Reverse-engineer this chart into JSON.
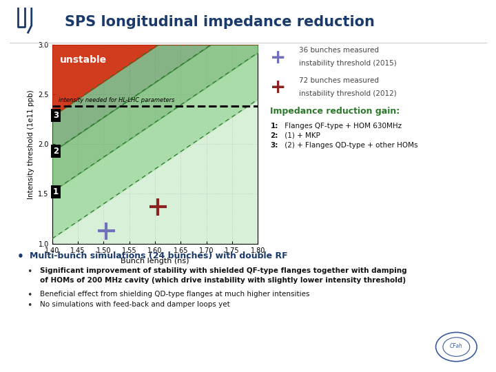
{
  "title": "SPS longitudinal impedance reduction",
  "title_color": "#1a3a6b",
  "bg_color": "#ffffff",
  "xlabel": "Bunch length (ns)",
  "ylabel": "Intensity threshold (1e11 ppb)",
  "xlim": [
    1.4,
    1.8
  ],
  "ylim": [
    1.0,
    3.0
  ],
  "xticks": [
    1.4,
    1.45,
    1.5,
    1.55,
    1.6,
    1.65,
    1.7,
    1.75,
    1.8
  ],
  "yticks": [
    1.0,
    1.5,
    2.0,
    2.5,
    3.0
  ],
  "hl_lhc_intensity": 2.38,
  "unstable_label": "unstable",
  "red_color": "#cc2200",
  "dark_green": "#2d7a2d",
  "mid_green": "#5aaa5a",
  "light_green": "#aadcaa",
  "very_light_green": "#d8f0d8",
  "plot_bg": "#f0faf0",
  "slope": 3.5,
  "c0_y0": 1.05,
  "c1_y0": 1.52,
  "c2_y0": 1.92,
  "c3_y0": 2.28,
  "marker_36_x": 1.505,
  "marker_36_y": 1.13,
  "marker_36_color": "#7070bb",
  "marker_72_x": 1.605,
  "marker_72_y": 1.37,
  "marker_72_color": "#8b2222",
  "label_36_line1": "36 bunches measured",
  "label_36_line2": "instability threshold (2015)",
  "label_72_line1": "72 bunches measured",
  "label_72_line2": "instability threshold (2012)",
  "impedance_title": "Impedance reduction gain:",
  "impedance_1": "1: Flanges QF-type + HOM 630MHz",
  "impedance_2": "2: (1) + MKP",
  "impedance_3": "3: (2) + Flanges QD-type + other HOMs",
  "bullet1": "Multi-bunch simulations (24 bunches) with double RF",
  "bullet2a": "Significant improvement of stability with shielded QF-type flanges together with damping",
  "bullet2b": "of HOMs of 200 MHz cavity (which drive instability with slightly lower intensity threshold)",
  "bullet3": "Beneficial effect from shielding QD-type flanges at much higher intensities",
  "bullet4": "No simulations with feed-back and damper loops yet",
  "green_text": "#2d7a2d",
  "dark_blue": "#1a3a6b",
  "marker_size": 18
}
